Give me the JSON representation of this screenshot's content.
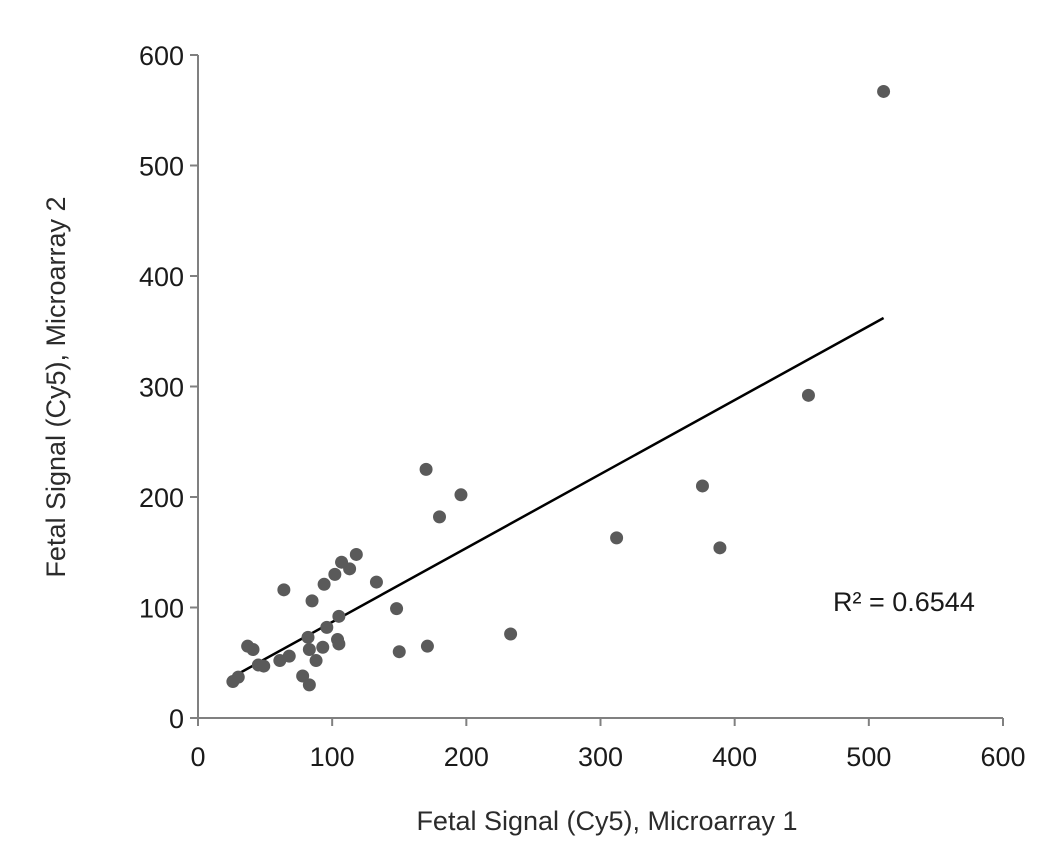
{
  "chart_data": {
    "type": "scatter",
    "xlabel": "Fetal Signal (Cy5), Microarray 1",
    "ylabel": "Fetal  Signal (Cy5), Microarray 2",
    "xlim": [
      0,
      600
    ],
    "ylim": [
      0,
      600
    ],
    "x_ticks": [
      "0",
      "100",
      "200",
      "300",
      "400",
      "500",
      "600"
    ],
    "y_ticks": [
      "0",
      "100",
      "200",
      "300",
      "400",
      "500",
      "600"
    ],
    "grid": false,
    "point_color": "#5a5a5a",
    "trendline": {
      "type": "linear",
      "x": [
        27,
        511
      ],
      "y": [
        38,
        362
      ]
    },
    "annotation": "R² = 0.6544",
    "points": [
      {
        "x": 511,
        "y": 567
      },
      {
        "x": 455,
        "y": 292
      },
      {
        "x": 376,
        "y": 210
      },
      {
        "x": 389,
        "y": 154
      },
      {
        "x": 312,
        "y": 163
      },
      {
        "x": 233,
        "y": 76
      },
      {
        "x": 196,
        "y": 202
      },
      {
        "x": 170,
        "y": 225
      },
      {
        "x": 180,
        "y": 182
      },
      {
        "x": 171,
        "y": 65
      },
      {
        "x": 148,
        "y": 99
      },
      {
        "x": 150,
        "y": 60
      },
      {
        "x": 133,
        "y": 123
      },
      {
        "x": 118,
        "y": 148
      },
      {
        "x": 113,
        "y": 135
      },
      {
        "x": 107,
        "y": 141
      },
      {
        "x": 102,
        "y": 130
      },
      {
        "x": 94,
        "y": 121
      },
      {
        "x": 105,
        "y": 92
      },
      {
        "x": 96,
        "y": 82
      },
      {
        "x": 85,
        "y": 106
      },
      {
        "x": 64,
        "y": 116
      },
      {
        "x": 104,
        "y": 71
      },
      {
        "x": 105,
        "y": 67
      },
      {
        "x": 93,
        "y": 64
      },
      {
        "x": 82,
        "y": 73
      },
      {
        "x": 83,
        "y": 62
      },
      {
        "x": 88,
        "y": 52
      },
      {
        "x": 78,
        "y": 38
      },
      {
        "x": 83,
        "y": 30
      },
      {
        "x": 61,
        "y": 52
      },
      {
        "x": 68,
        "y": 56
      },
      {
        "x": 37,
        "y": 65
      },
      {
        "x": 41,
        "y": 62
      },
      {
        "x": 45,
        "y": 48
      },
      {
        "x": 49,
        "y": 47
      },
      {
        "x": 30,
        "y": 37
      },
      {
        "x": 26,
        "y": 33
      }
    ]
  }
}
